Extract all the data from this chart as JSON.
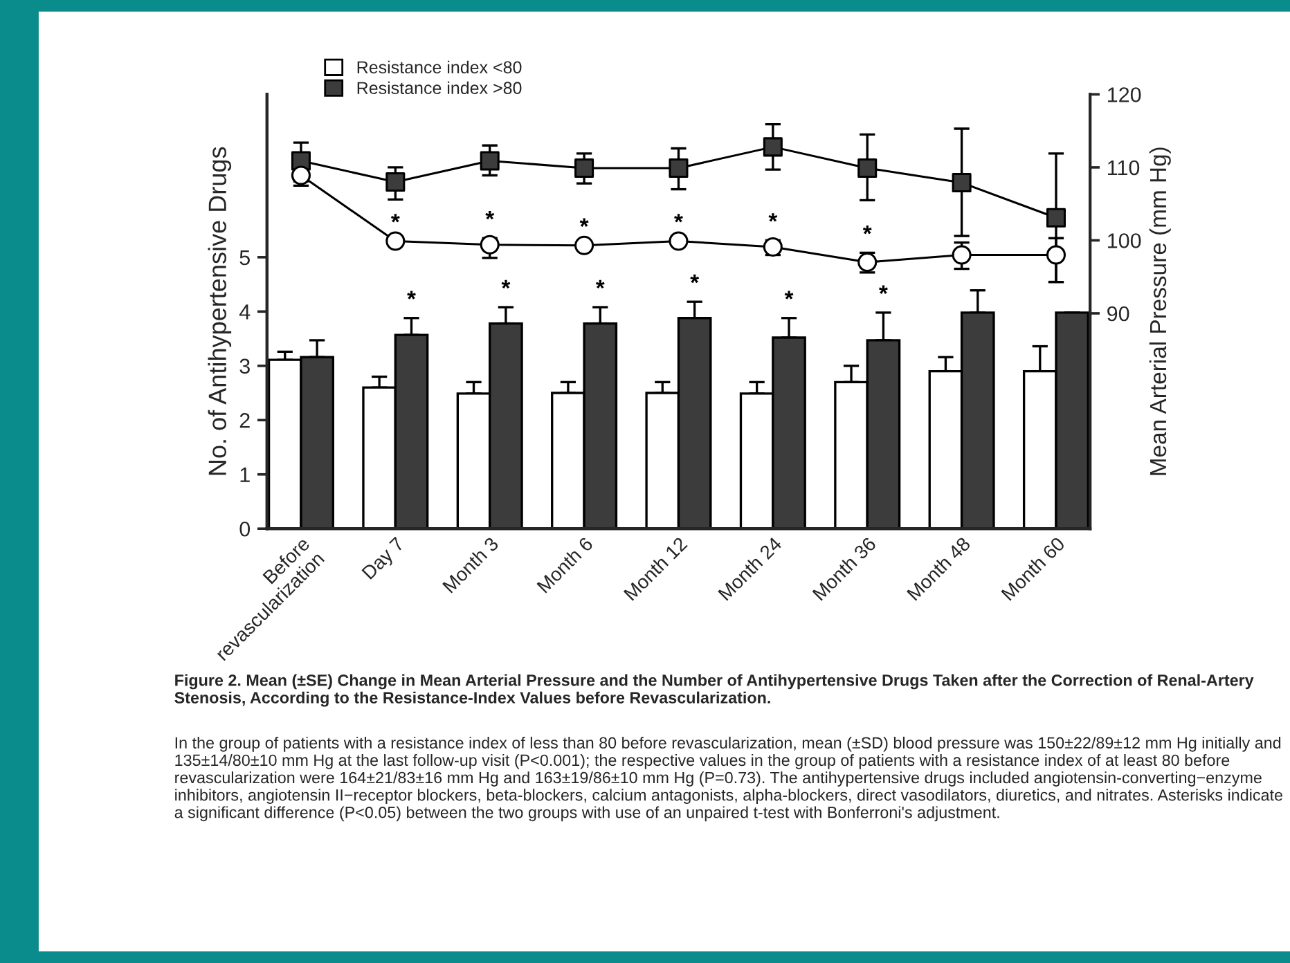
{
  "chart_data": {
    "type": "bar",
    "title": "Figure 2. Mean (±SE) Change in Mean Arterial Pressure and the Number of Antihypertensive Drugs Taken after the Correction of Renal-Artery Stenosis, According to the Resistance-Index Values before Revascularization.",
    "ylabel": "No. of Antihypertensive Drugs",
    "y2label": "Mean Arterial Pressure (mm Hg)",
    "categories": [
      "Before\nrevascularization",
      "Day 7",
      "Month 3",
      "Month 6",
      "Month 12",
      "Month 24",
      "Month 36",
      "Month 48",
      "Month 60"
    ],
    "series": [
      {
        "name": "Resistance index <80",
        "color": "#ffffff",
        "values": [
          3.11,
          2.6,
          2.49,
          2.5,
          2.5,
          2.49,
          2.7,
          2.9,
          2.9
        ],
        "errors": [
          [
            3.11,
            3.26
          ],
          [
            2.6,
            2.8
          ],
          [
            2.49,
            2.7
          ],
          [
            2.5,
            2.7
          ],
          [
            2.5,
            2.7
          ],
          [
            2.49,
            2.7
          ],
          [
            2.7,
            3.0
          ],
          [
            2.9,
            3.16
          ],
          [
            2.9,
            3.36
          ]
        ]
      },
      {
        "name": "Resistance index >80",
        "color": "#3c3c3c",
        "values": [
          3.16,
          3.57,
          3.78,
          3.78,
          3.88,
          3.52,
          3.47,
          3.98,
          3.98
        ],
        "value_labels": [
          null,
          "*",
          "*",
          "*",
          "*",
          "*",
          "*",
          null,
          null
        ],
        "errors": [
          [
            3.16,
            3.47
          ],
          [
            3.57,
            3.88
          ],
          [
            3.78,
            4.08
          ],
          [
            3.78,
            4.08
          ],
          [
            3.88,
            4.18
          ],
          [
            3.52,
            3.88
          ],
          [
            3.47,
            3.98
          ],
          [
            3.98,
            4.39
          ],
          null
        ]
      },
      {
        "type": "line",
        "axis": "y2",
        "marker": "square",
        "color": "#3c3c3c",
        "values": [
          110.9,
          108,
          110.9,
          109.9,
          109.9,
          112.8,
          109.9,
          107.9,
          103.1
        ],
        "errors": [
          [
            108.1,
            113.4
          ],
          [
            105.6,
            110
          ],
          [
            108.9,
            113
          ],
          [
            107.8,
            111.9
          ],
          [
            107,
            112.6
          ],
          [
            109.7,
            115.9
          ],
          [
            105.5,
            114.5
          ],
          [
            100.6,
            115.3
          ],
          [
            94.3,
            111.9
          ]
        ]
      },
      {
        "type": "line",
        "axis": "y2",
        "marker": "circle",
        "color": "#ffffff",
        "values": [
          108.9,
          99.9,
          99.4,
          99.3,
          99.9,
          99.1,
          97,
          98,
          98
        ],
        "value_labels": [
          null,
          "*",
          "*",
          "*",
          "*",
          "*",
          "*",
          null,
          null
        ],
        "errors": [
          [
            107.5,
            110
          ],
          null,
          [
            97.6,
            100.3
          ],
          null,
          null,
          [
            98,
            100
          ],
          [
            95.6,
            98.3
          ],
          [
            96.1,
            99.7
          ],
          [
            94.3,
            100.3
          ]
        ]
      }
    ],
    "ylim": [
      0,
      8
    ],
    "yticks": [
      0,
      1,
      2,
      3,
      4,
      5
    ],
    "y2lim": [
      60.5,
      120
    ],
    "y2ticks": [
      90,
      100,
      110,
      120
    ],
    "legend": "top left",
    "grid": false,
    "annotations": [
      "In the group of patients with a resistance index of less than 80 before revascularization, mean (±SD) blood pressure was 150±22/89±12 mm Hg initially and 135±14/80±10 mm Hg at the last follow-up visit (P<0.001); the respective values in the group of patients with a resistance index of at least 80 before revascularization were 164±21/83±16 mm Hg and 163±19/86±10 mm Hg (P=0.73). The antihypertensive drugs included angiotensin-converting−enzyme inhibitors, angiotensin II−receptor blockers, beta-blockers, calcium antagonists, alpha-blockers, direct vasodilators, diuretics, and nitrates. Asterisks indicate a significant difference (P<0.05) between the two groups with use of an unpaired t-test with Bonferroni's adjustment."
    ]
  }
}
